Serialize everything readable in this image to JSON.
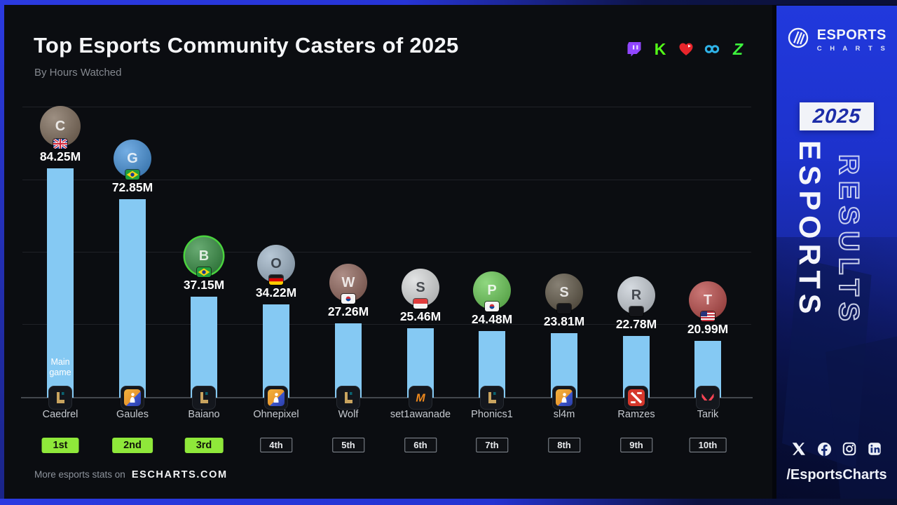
{
  "header": {
    "title": "Top Esports Community Casters of 2025",
    "subtitle": "By Hours Watched",
    "platform_icons": [
      "twitch-icon",
      "kick-icon",
      "heart-play-icon",
      "infinity-icon",
      "chzzk-icon"
    ]
  },
  "chart_data": {
    "type": "bar",
    "title": "Top Esports Community Casters of 2025",
    "metric": "Hours Watched",
    "value_unit": "millions of hours",
    "ylim": [
      0,
      110
    ],
    "grid": true,
    "legend": "none",
    "bar_color": "#85c9f3",
    "main_game_label": "Main game",
    "categories": [
      "Caedrel",
      "Gaules",
      "Baiano",
      "Ohnepixel",
      "Wolf",
      "set1awanade",
      "Phonics1",
      "sl4m",
      "Ramzes",
      "Tarik"
    ],
    "values": [
      84.25,
      72.85,
      37.15,
      34.22,
      27.26,
      25.46,
      24.48,
      23.81,
      22.78,
      20.99
    ],
    "items": [
      {
        "name": "Caedrel",
        "value": 84.25,
        "value_label": "84.25M",
        "rank": "1st",
        "top3": true,
        "country_flag": "gb",
        "game_icon": "lol",
        "avatar_color": "#776452",
        "initial": "C"
      },
      {
        "name": "Gaules",
        "value": 72.85,
        "value_label": "72.85M",
        "rank": "2nd",
        "top3": true,
        "country_flag": "br",
        "game_icon": "cs2",
        "avatar_color": "#3e8ed9",
        "initial": "G"
      },
      {
        "name": "Baiano",
        "value": 37.15,
        "value_label": "37.15M",
        "rank": "3rd",
        "top3": true,
        "country_flag": "br",
        "game_icon": "lol",
        "avatar_color": "#2e8a3c",
        "initial": "B",
        "avatar_ring": "#4ad33e"
      },
      {
        "name": "Ohnepixel",
        "value": 34.22,
        "value_label": "34.22M",
        "rank": "4th",
        "top3": false,
        "country_flag": "de",
        "game_icon": "cs2",
        "avatar_color": "#9cb2c6",
        "initial": "O",
        "light_avatar": true
      },
      {
        "name": "Wolf",
        "value": 27.26,
        "value_label": "27.26M",
        "rank": "5th",
        "top3": false,
        "country_flag": "kr",
        "game_icon": "lol",
        "avatar_color": "#8d6157",
        "initial": "W"
      },
      {
        "name": "set1awanade",
        "value": 25.46,
        "value_label": "25.46M",
        "rank": "6th",
        "top3": false,
        "country_flag": "id",
        "game_icon": "mlbb",
        "avatar_color": "#d7d9da",
        "initial": "S",
        "light_avatar": true
      },
      {
        "name": "Phonics1",
        "value": 24.48,
        "value_label": "24.48M",
        "rank": "7th",
        "top3": false,
        "country_flag": "kr",
        "game_icon": "lol",
        "avatar_color": "#64c84f",
        "initial": "P"
      },
      {
        "name": "sl4m",
        "value": 23.81,
        "value_label": "23.81M",
        "rank": "8th",
        "top3": false,
        "country_flag": "censored",
        "game_icon": "cs2",
        "avatar_color": "#59503f",
        "initial": "S"
      },
      {
        "name": "Ramzes",
        "value": 22.78,
        "value_label": "22.78M",
        "rank": "9th",
        "top3": false,
        "country_flag": "censored",
        "game_icon": "dota2",
        "avatar_color": "#c5ccd4",
        "initial": "R",
        "light_avatar": true
      },
      {
        "name": "Tarik",
        "value": 20.99,
        "value_label": "20.99M",
        "rank": "10th",
        "top3": false,
        "country_flag": "us",
        "game_icon": "valorant",
        "avatar_color": "#b64341",
        "initial": "T"
      }
    ]
  },
  "footer": {
    "prefix": "More esports stats on",
    "site": "ESCHARTS.COM"
  },
  "sidebar": {
    "brand_top": "ESPORTS",
    "brand_bottom": "C H A R T S",
    "year": "2025",
    "word_solid": "ESPORTS",
    "word_outline": "RESULTS",
    "social_icons": [
      "x-icon",
      "facebook-icon",
      "instagram-icon",
      "linkedin-icon"
    ],
    "handle": "/EsportsCharts"
  },
  "colors": {
    "bar": "#85c9f3",
    "rank_green": "#8fe83a",
    "sidebar_blue": "#1d32cc",
    "card_bg": "#0b0d11",
    "frame_blue": "#2b3ae0"
  }
}
